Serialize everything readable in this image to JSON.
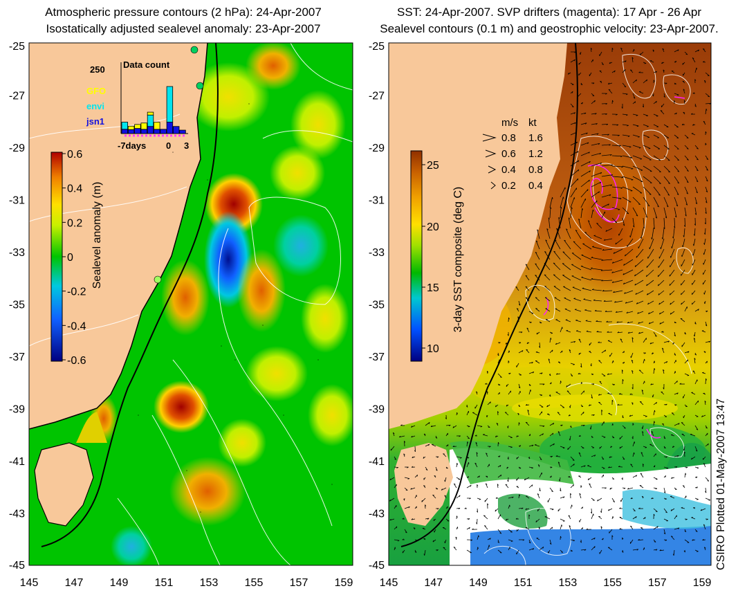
{
  "left_panel": {
    "title_line1": "Atmospheric pressure contours (2 hPa): 24-Apr-2007",
    "title_line2": "Isostatically adjusted sealevel anomaly: 23-Apr-2007",
    "colorbar": {
      "label": "Sealevel anomaly (m)",
      "ticks": [
        "0.6",
        "0.4",
        "0.2",
        "0",
        "-0.2",
        "-0.4",
        "-0.6"
      ]
    },
    "inset": {
      "title": "Data count",
      "ymax_label": "250",
      "legend": [
        {
          "name": "GFO",
          "color": "#ffff00"
        },
        {
          "name": "envi",
          "color": "#00e5ee"
        },
        {
          "name": "jsn1",
          "color": "#1010e0"
        }
      ],
      "x_labels": [
        "-7days",
        "0",
        "3"
      ],
      "bars": [
        {
          "jsn1": 15,
          "envi": 25,
          "gfo": 0
        },
        {
          "jsn1": 14,
          "envi": 0,
          "gfo": 12
        },
        {
          "jsn1": 18,
          "envi": 0,
          "gfo": 14
        },
        {
          "jsn1": 15,
          "envi": 0,
          "gfo": 22
        },
        {
          "jsn1": 25,
          "envi": 40,
          "gfo": 10
        },
        {
          "jsn1": 15,
          "envi": 0,
          "gfo": 25
        },
        {
          "jsn1": 15,
          "envi": 0,
          "gfo": 0
        },
        {
          "jsn1": 40,
          "envi": 125,
          "gfo": 0
        },
        {
          "jsn1": 25,
          "envi": 0,
          "gfo": 0
        },
        {
          "jsn1": 12,
          "envi": 0,
          "gfo": 0
        }
      ]
    }
  },
  "right_panel": {
    "title_line1": "SST: 24-Apr-2007. SVP drifters (magenta): 17 Apr - 26 Apr",
    "title_line2": "Sealevel contours (0.1 m) and geostrophic velocity: 23-Apr-2007.",
    "colorbar": {
      "label": "3-day SST composite (deg C)",
      "ticks": [
        "25",
        "20",
        "15",
        "10"
      ]
    },
    "velocity_legend": {
      "header_ms": "m/s",
      "header_kt": "kt",
      "rows": [
        {
          "ms": "0.8",
          "kt": "1.6"
        },
        {
          "ms": "0.6",
          "kt": "1.2"
        },
        {
          "ms": "0.4",
          "kt": "0.8"
        },
        {
          "ms": "0.2",
          "kt": "0.4"
        }
      ]
    }
  },
  "axes": {
    "lat_labels": [
      "-25",
      "-27",
      "-29",
      "-31",
      "-33",
      "-35",
      "-37",
      "-39",
      "-41",
      "-43",
      "-45"
    ],
    "lon_labels": [
      "145",
      "147",
      "149",
      "151",
      "153",
      "155",
      "157",
      "159"
    ]
  },
  "credit": "CSIRO Plotted 01-May-2007 13:47",
  "colors": {
    "land": "#f8c89a",
    "ssh_background": "#00c400",
    "cloud": "#ffffff"
  }
}
